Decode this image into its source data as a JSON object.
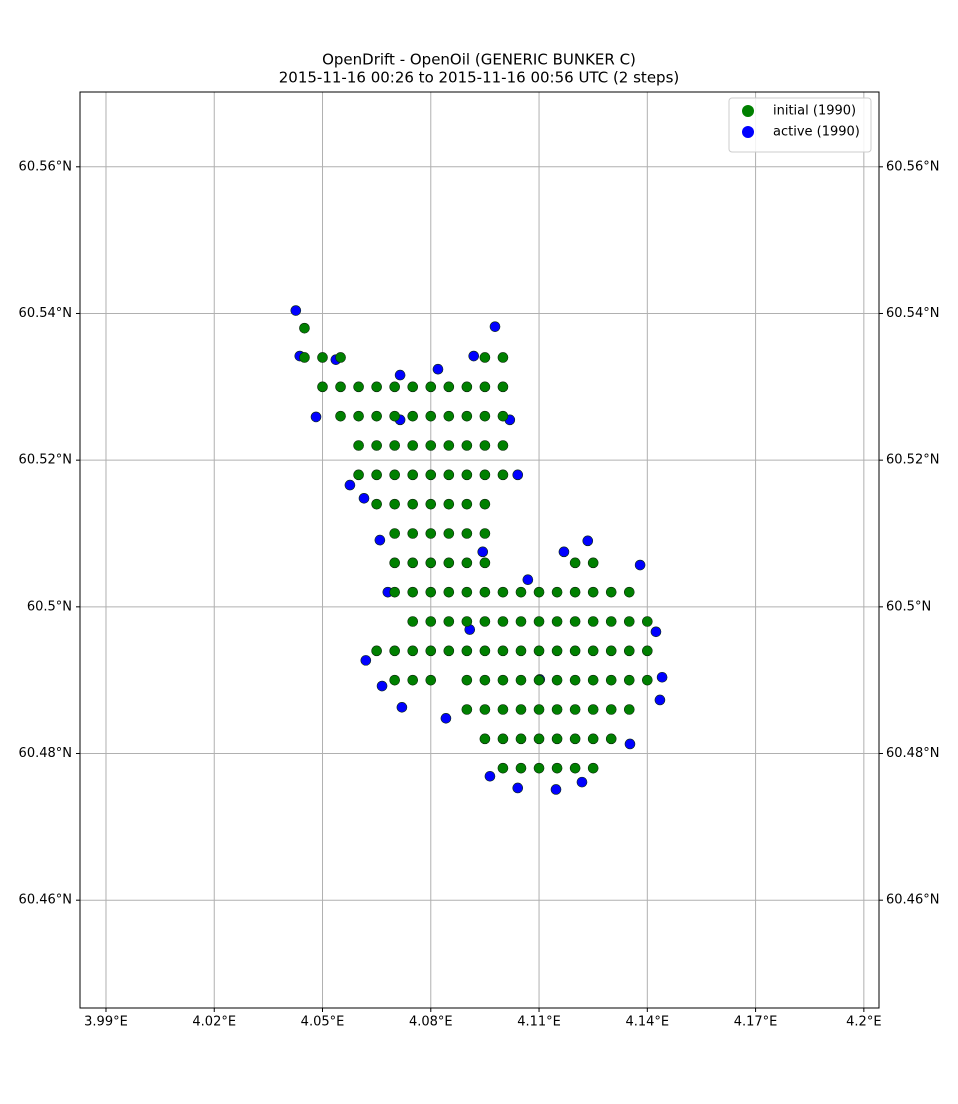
{
  "chart_data": {
    "type": "scatter",
    "title": "OpenDrift - OpenOil (GENERIC BUNKER C)",
    "subtitle": "2015-11-16 00:26 to 2015-11-16 00:56 UTC (2 steps)",
    "xlim": [
      3.9828,
      4.2042
    ],
    "ylim": [
      60.4453,
      60.5702
    ],
    "xticks": [
      {
        "value": 3.99,
        "label": "3.99°E"
      },
      {
        "value": 4.02,
        "label": "4.02°E"
      },
      {
        "value": 4.05,
        "label": "4.05°E"
      },
      {
        "value": 4.08,
        "label": "4.08°E"
      },
      {
        "value": 4.11,
        "label": "4.11°E"
      },
      {
        "value": 4.14,
        "label": "4.14°E"
      },
      {
        "value": 4.17,
        "label": "4.17°E"
      },
      {
        "value": 4.2,
        "label": "4.2°E"
      }
    ],
    "yticks": [
      {
        "value": 60.46,
        "label": "60.46°N"
      },
      {
        "value": 60.48,
        "label": "60.48°N"
      },
      {
        "value": 60.5,
        "label": "60.5°N"
      },
      {
        "value": 60.52,
        "label": "60.52°N"
      },
      {
        "value": 60.54,
        "label": "60.54°N"
      },
      {
        "value": 60.56,
        "label": "60.56°N"
      }
    ],
    "grid": true,
    "legend": "upper right",
    "series": [
      {
        "name": "initial (1990)",
        "color": "#008000",
        "x": [
          4.045,
          4.045,
          4.05,
          4.055,
          4.095,
          4.1,
          4.05,
          4.055,
          4.06,
          4.065,
          4.07,
          4.075,
          4.08,
          4.085,
          4.09,
          4.095,
          4.1,
          4.055,
          4.06,
          4.065,
          4.07,
          4.075,
          4.08,
          4.085,
          4.09,
          4.095,
          4.1,
          4.06,
          4.065,
          4.07,
          4.075,
          4.08,
          4.085,
          4.09,
          4.095,
          4.1,
          4.06,
          4.065,
          4.07,
          4.075,
          4.08,
          4.085,
          4.09,
          4.095,
          4.1,
          4.065,
          4.07,
          4.075,
          4.08,
          4.085,
          4.09,
          4.095,
          4.07,
          4.075,
          4.08,
          4.085,
          4.09,
          4.095,
          4.07,
          4.075,
          4.08,
          4.085,
          4.09,
          4.095,
          4.12,
          4.125,
          4.07,
          4.075,
          4.08,
          4.085,
          4.09,
          4.095,
          4.1,
          4.105,
          4.11,
          4.115,
          4.12,
          4.125,
          4.13,
          4.135,
          4.075,
          4.08,
          4.085,
          4.09,
          4.095,
          4.1,
          4.105,
          4.11,
          4.115,
          4.12,
          4.125,
          4.13,
          4.135,
          4.14,
          4.065,
          4.07,
          4.075,
          4.08,
          4.085,
          4.09,
          4.095,
          4.1,
          4.105,
          4.11,
          4.115,
          4.12,
          4.125,
          4.13,
          4.135,
          4.14,
          4.07,
          4.075,
          4.08,
          4.09,
          4.095,
          4.1,
          4.105,
          4.11,
          4.115,
          4.12,
          4.125,
          4.13,
          4.135,
          4.14,
          4.09,
          4.095,
          4.1,
          4.105,
          4.11,
          4.115,
          4.12,
          4.125,
          4.13,
          4.135,
          4.095,
          4.1,
          4.105,
          4.11,
          4.115,
          4.12,
          4.125,
          4.13,
          4.1,
          4.105,
          4.11,
          4.115,
          4.12,
          4.125
        ],
        "values": [
          60.538,
          60.534,
          60.534,
          60.534,
          60.534,
          60.534,
          60.53,
          60.53,
          60.53,
          60.53,
          60.53,
          60.53,
          60.53,
          60.53,
          60.53,
          60.53,
          60.53,
          60.526,
          60.526,
          60.526,
          60.526,
          60.526,
          60.526,
          60.526,
          60.526,
          60.526,
          60.526,
          60.522,
          60.522,
          60.522,
          60.522,
          60.522,
          60.522,
          60.522,
          60.522,
          60.522,
          60.518,
          60.518,
          60.518,
          60.518,
          60.518,
          60.518,
          60.518,
          60.518,
          60.518,
          60.514,
          60.514,
          60.514,
          60.514,
          60.514,
          60.514,
          60.514,
          60.51,
          60.51,
          60.51,
          60.51,
          60.51,
          60.51,
          60.506,
          60.506,
          60.506,
          60.506,
          60.506,
          60.506,
          60.506,
          60.506,
          60.502,
          60.502,
          60.502,
          60.502,
          60.502,
          60.502,
          60.502,
          60.502,
          60.502,
          60.502,
          60.502,
          60.502,
          60.502,
          60.502,
          60.498,
          60.498,
          60.498,
          60.498,
          60.498,
          60.498,
          60.498,
          60.498,
          60.498,
          60.498,
          60.498,
          60.498,
          60.498,
          60.498,
          60.494,
          60.494,
          60.494,
          60.494,
          60.494,
          60.494,
          60.494,
          60.494,
          60.494,
          60.494,
          60.494,
          60.494,
          60.494,
          60.494,
          60.494,
          60.494,
          60.49,
          60.49,
          60.49,
          60.49,
          60.49,
          60.49,
          60.49,
          60.49,
          60.49,
          60.49,
          60.49,
          60.49,
          60.49,
          60.49,
          60.486,
          60.486,
          60.486,
          60.486,
          60.486,
          60.486,
          60.486,
          60.486,
          60.486,
          60.486,
          60.482,
          60.482,
          60.482,
          60.482,
          60.482,
          60.482,
          60.482,
          60.482,
          60.478,
          60.478,
          60.478,
          60.478,
          60.478,
          60.478
        ]
      },
      {
        "name": "active (1990)",
        "color": "#0000ff",
        "x": [
          4.0426,
          4.0437,
          4.0482,
          4.0576,
          4.0615,
          4.0659,
          4.0681,
          4.062,
          4.0665,
          4.072,
          4.0842,
          4.0964,
          4.1041,
          4.1147,
          4.1219,
          4.1352,
          4.1435,
          4.1441,
          4.1424,
          4.138,
          4.1235,
          4.1169,
          4.1069,
          4.0944,
          4.1041,
          4.1019,
          4.0978,
          4.0919,
          4.082,
          4.0715,
          4.0537,
          4.0715,
          4.0908,
          4.1102
        ],
        "values": [
          60.5404,
          60.5342,
          60.5259,
          60.5166,
          60.5148,
          60.5091,
          60.502,
          60.4927,
          60.4892,
          60.4863,
          60.4848,
          60.4769,
          60.4753,
          60.4751,
          60.4761,
          60.4813,
          60.4873,
          60.4904,
          60.4966,
          60.5057,
          60.509,
          60.5075,
          60.5037,
          60.5075,
          60.518,
          60.5255,
          60.5382,
          60.5342,
          60.5324,
          60.5316,
          60.5337,
          60.5255,
          60.4969,
          60.4901
        ]
      }
    ]
  }
}
